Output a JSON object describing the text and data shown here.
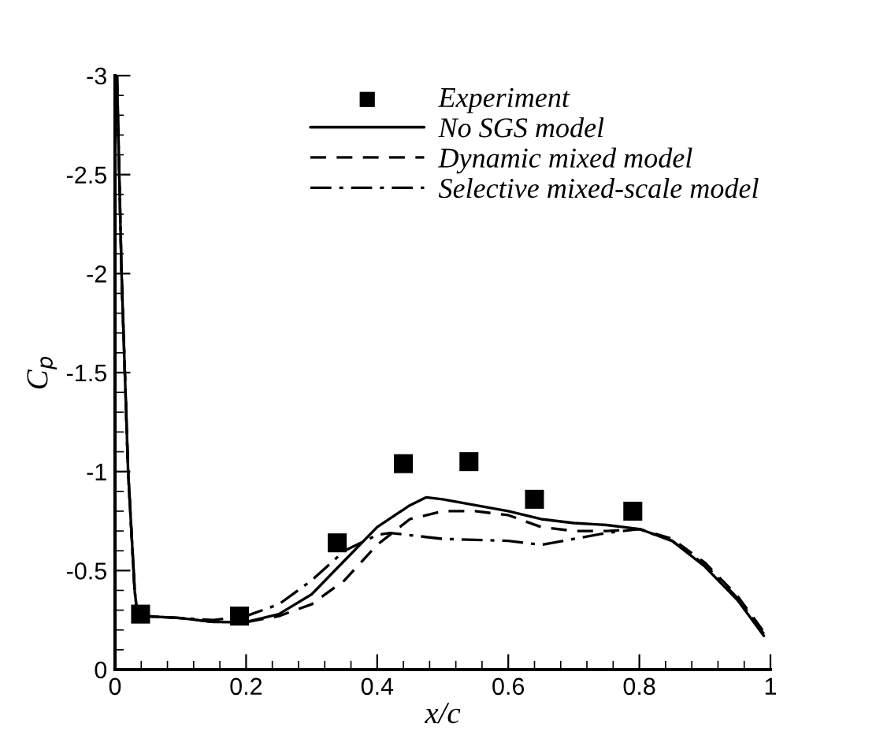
{
  "chart_data": {
    "type": "line",
    "xlabel": "x/c",
    "ylabel": "C$_{p}$",
    "xlim": [
      0,
      1
    ],
    "ylim": [
      0,
      -3
    ],
    "xticks": [
      0,
      0.2,
      0.4,
      0.6,
      0.8,
      1
    ],
    "yticks": [
      0,
      -0.5,
      -1,
      -1.5,
      -2,
      -2.5,
      -3
    ],
    "legend": "top right",
    "grid": false,
    "series": [
      {
        "name": "Experiment",
        "type": "scatter",
        "marker": "square",
        "color": "#000000",
        "x": [
          0.039,
          0.19,
          0.339,
          0.44,
          0.54,
          0.64,
          0.79
        ],
        "values": [
          -0.28,
          -0.27,
          -0.64,
          -1.04,
          -1.05,
          -0.86,
          -0.8
        ]
      },
      {
        "name": "No SGS model",
        "type": "line",
        "line_style": "solid",
        "color": "#000000",
        "x": [
          0.003,
          0.01,
          0.02,
          0.03,
          0.035,
          0.045,
          0.1,
          0.15,
          0.2,
          0.25,
          0.3,
          0.35,
          0.4,
          0.45,
          0.475,
          0.5,
          0.55,
          0.6,
          0.65,
          0.7,
          0.75,
          0.8,
          0.85,
          0.9,
          0.95,
          0.99
        ],
        "values": [
          -3.0,
          -2.0,
          -1.0,
          -0.4,
          -0.25,
          -0.27,
          -0.26,
          -0.24,
          -0.24,
          -0.28,
          -0.38,
          -0.55,
          -0.72,
          -0.83,
          -0.87,
          -0.86,
          -0.83,
          -0.8,
          -0.76,
          -0.74,
          -0.73,
          -0.71,
          -0.65,
          -0.52,
          -0.35,
          -0.17
        ]
      },
      {
        "name": "Dynamic mixed model",
        "type": "line",
        "line_style": "dashed",
        "color": "#000000",
        "x": [
          0.003,
          0.01,
          0.02,
          0.03,
          0.035,
          0.045,
          0.1,
          0.15,
          0.2,
          0.25,
          0.3,
          0.35,
          0.4,
          0.45,
          0.5,
          0.55,
          0.6,
          0.65,
          0.7,
          0.75,
          0.8,
          0.85,
          0.9,
          0.95,
          0.99
        ],
        "values": [
          -3.0,
          -2.0,
          -1.0,
          -0.4,
          -0.25,
          -0.27,
          -0.26,
          -0.24,
          -0.24,
          -0.27,
          -0.33,
          -0.45,
          -0.63,
          -0.76,
          -0.8,
          -0.8,
          -0.78,
          -0.72,
          -0.7,
          -0.7,
          -0.71,
          -0.66,
          -0.54,
          -0.37,
          -0.19
        ]
      },
      {
        "name": "Selective mixed-scale model",
        "type": "line",
        "line_style": "dashdot",
        "color": "#000000",
        "x": [
          0.003,
          0.01,
          0.02,
          0.03,
          0.035,
          0.045,
          0.1,
          0.15,
          0.2,
          0.25,
          0.3,
          0.35,
          0.4,
          0.42,
          0.5,
          0.6,
          0.65,
          0.7,
          0.75,
          0.8,
          0.85,
          0.9,
          0.95,
          0.99
        ],
        "values": [
          -3.0,
          -2.0,
          -1.0,
          -0.4,
          -0.25,
          -0.27,
          -0.26,
          -0.25,
          -0.27,
          -0.33,
          -0.45,
          -0.6,
          -0.68,
          -0.69,
          -0.66,
          -0.65,
          -0.63,
          -0.66,
          -0.69,
          -0.71,
          -0.65,
          -0.53,
          -0.36,
          -0.18
        ]
      }
    ]
  }
}
